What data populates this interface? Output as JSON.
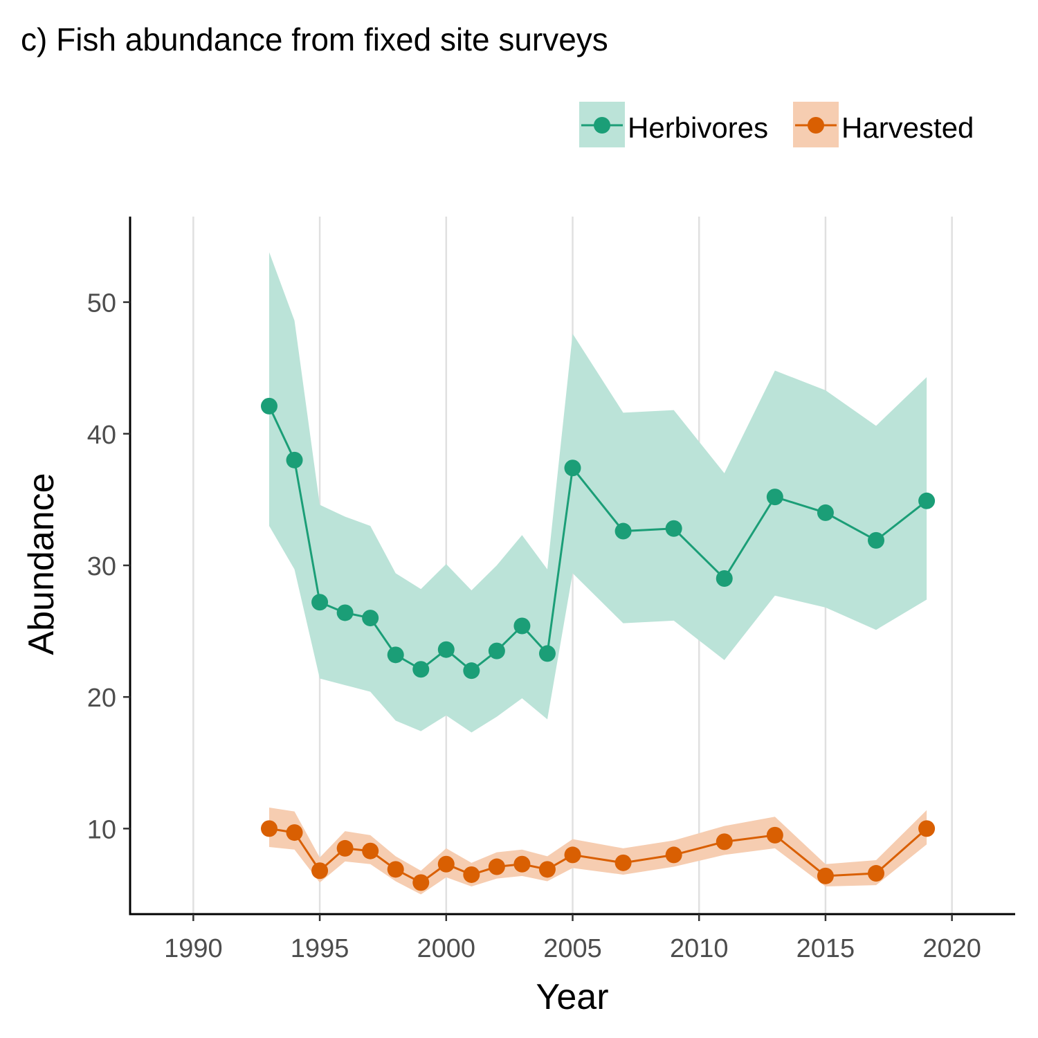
{
  "chart_data": {
    "type": "line",
    "title": "c) Fish abundance from fixed site surveys",
    "xlabel": "Year",
    "ylabel": "Abundance",
    "xlim": [
      1987.5,
      2022.5
    ],
    "ylim": [
      3.5,
      56.5
    ],
    "x_ticks": [
      1990,
      1995,
      2000,
      2005,
      2010,
      2015,
      2020
    ],
    "y_ticks": [
      10,
      20,
      30,
      40,
      50
    ],
    "grid": "vertical major lines only",
    "legend_position": "top-right",
    "series": [
      {
        "name": "Herbivores",
        "color": "#1b9e77",
        "ribbon_color": "#bbe3d8",
        "x": [
          1993,
          1994,
          1995,
          1996,
          1997,
          1998,
          1999,
          2000,
          2001,
          2002,
          2003,
          2004,
          2005,
          2007,
          2009,
          2011,
          2013,
          2015,
          2017,
          2019
        ],
        "values": [
          42.1,
          38.0,
          27.2,
          26.4,
          26.0,
          23.2,
          22.1,
          23.6,
          22.0,
          23.5,
          25.4,
          23.3,
          37.4,
          32.6,
          32.8,
          29.0,
          35.2,
          34.0,
          31.9,
          34.9
        ],
        "lower": [
          33.0,
          29.7,
          21.4,
          20.9,
          20.4,
          18.2,
          17.4,
          18.6,
          17.3,
          18.5,
          19.9,
          18.3,
          29.4,
          25.6,
          25.8,
          22.8,
          27.7,
          26.8,
          25.1,
          27.4
        ],
        "upper": [
          53.8,
          48.6,
          34.6,
          33.7,
          33.0,
          29.4,
          28.2,
          30.1,
          28.1,
          30.0,
          32.3,
          29.7,
          47.6,
          41.6,
          41.8,
          37.0,
          44.8,
          43.3,
          40.6,
          44.3
        ]
      },
      {
        "name": "Harvested",
        "color": "#d95f02",
        "ribbon_color": "#f6cdb1",
        "x": [
          1993,
          1994,
          1995,
          1996,
          1997,
          1998,
          1999,
          2000,
          2001,
          2002,
          2003,
          2004,
          2005,
          2007,
          2009,
          2011,
          2013,
          2015,
          2017,
          2019
        ],
        "values": [
          10.0,
          9.7,
          6.8,
          8.5,
          8.3,
          6.9,
          5.9,
          7.3,
          6.5,
          7.1,
          7.3,
          6.9,
          8.0,
          7.4,
          8.0,
          9.0,
          9.5,
          6.4,
          6.6,
          10.0
        ],
        "lower": [
          8.6,
          8.4,
          5.9,
          7.5,
          7.3,
          6.0,
          5.0,
          6.3,
          5.6,
          6.2,
          6.4,
          6.0,
          7.0,
          6.5,
          7.1,
          8.0,
          8.5,
          5.6,
          5.7,
          8.8
        ],
        "upper": [
          11.6,
          11.3,
          7.8,
          9.8,
          9.5,
          7.9,
          6.8,
          8.5,
          7.4,
          8.2,
          8.4,
          7.9,
          9.2,
          8.5,
          9.1,
          10.2,
          10.9,
          7.3,
          7.6,
          11.4
        ]
      }
    ]
  }
}
